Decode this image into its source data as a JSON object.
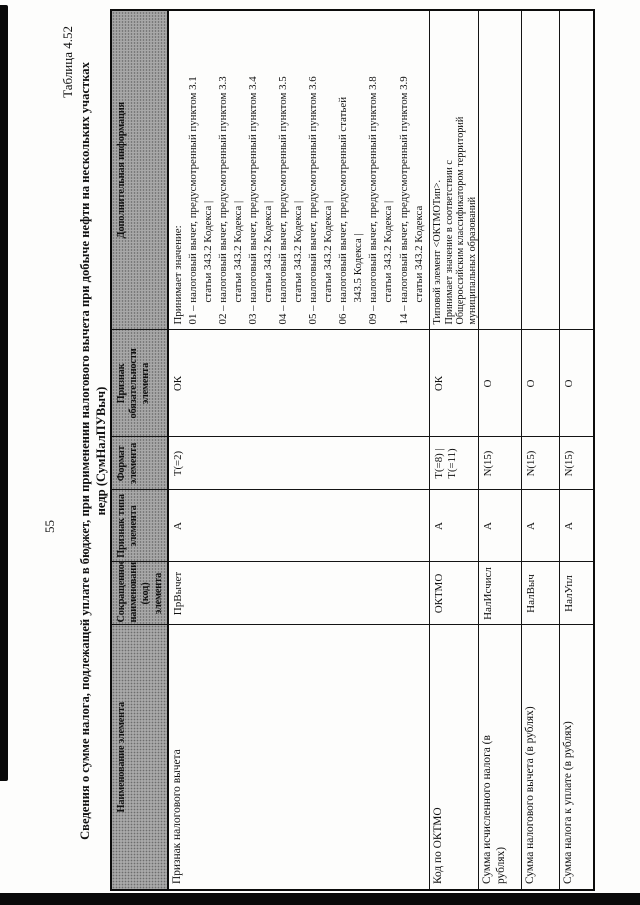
{
  "page": {
    "number": "55",
    "table_label": "Таблица 4.52",
    "title_line1": "Сведения о сумме налога, подлежащей уплате в бюджет, при применении налогового вычета при добыче нефти на нескольких участках",
    "title_line2": "недр (СумНалПУВыч)"
  },
  "table": {
    "columns": [
      "Наименование элемента",
      "Сокращенное наименование (код) элемента",
      "Признак типа элемента",
      "Формат элемента",
      "Признак обязательности элемента",
      "Дополнительная информация"
    ],
    "rows": [
      {
        "name": "Признак налогового вычета",
        "code": "ПрВычет",
        "type": "А",
        "format": [
          "Т(=2)"
        ],
        "mandatory": "ОК",
        "info": [
          {
            "text": "Принимает значение:",
            "indent": false
          },
          {
            "text": "01 – налоговый вычет, предусмотренный пунктом 3.1",
            "indent": false
          },
          {
            "text": "статьи 343.2 Кодекса |",
            "indent": true
          },
          {
            "text": "02 – налоговый вычет, предусмотренный пунктом 3.3",
            "indent": false
          },
          {
            "text": "статьи 343.2 Кодекса |",
            "indent": true
          },
          {
            "text": "03 – налоговый вычет, предусмотренный пунктом 3.4",
            "indent": false
          },
          {
            "text": "статьи 343.2 Кодекса |",
            "indent": true
          },
          {
            "text": "04 – налоговый вычет, предусмотренный пунктом 3.5",
            "indent": false
          },
          {
            "text": "статьи 343.2 Кодекса |",
            "indent": true
          },
          {
            "text": "05 – налоговый вычет, предусмотренный пунктом 3.6",
            "indent": false
          },
          {
            "text": "статьи 343.2 Кодекса |",
            "indent": true
          },
          {
            "text": "06 – налоговый вычет, предусмотренный статьей",
            "indent": false
          },
          {
            "text": "343.5 Кодекса |",
            "indent": true
          },
          {
            "text": "09 – налоговый вычет, предусмотренный пунктом 3.8",
            "indent": false
          },
          {
            "text": "статьи 343.2 Кодекса |",
            "indent": true
          },
          {
            "text": "14 – налоговый вычет, предусмотренный пунктом 3.9",
            "indent": false
          },
          {
            "text": "статьи 343.2 Кодекса",
            "indent": true
          }
        ]
      },
      {
        "name": "Код по ОКТМО",
        "code": "ОКТМО",
        "type": "А",
        "format": [
          "Т(=8) |",
          "Т(=11)"
        ],
        "mandatory": "ОК",
        "info": [
          {
            "text": "Типовой элемент <ОКТМОТип>.",
            "indent": false
          },
          {
            "text": "Принимает значение в соответствии с",
            "indent": false
          },
          {
            "text": "Общероссийским классификатором территорий",
            "indent": false
          },
          {
            "text": "муниципальных образований",
            "indent": false
          }
        ]
      },
      {
        "name": "Сумма исчисленного налога (в рублях)",
        "code": "НалИсчисл",
        "type": "А",
        "format": [
          "N(15)"
        ],
        "mandatory": "О",
        "info": []
      },
      {
        "name": "Сумма налогового вычета (в рублях)",
        "code": "НалВыч",
        "type": "А",
        "format": [
          "N(15)"
        ],
        "mandatory": "О",
        "info": []
      },
      {
        "name": "Сумма налога к уплате (в рублях)",
        "code": "НалУпл",
        "type": "А",
        "format": [
          "N(15)"
        ],
        "mandatory": "О",
        "info": []
      }
    ]
  }
}
